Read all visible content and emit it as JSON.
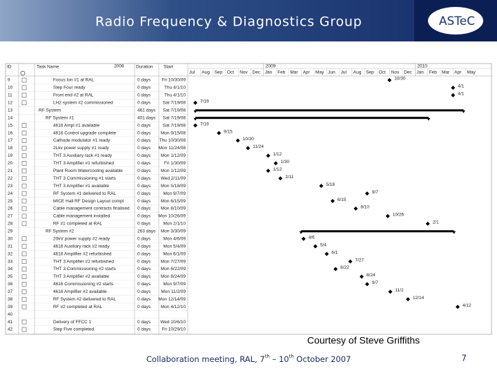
{
  "header": {
    "title": "Radio Frequency & Diagnostics Group",
    "logo": "ASTeC"
  },
  "gantt": {
    "columns": [
      "ID",
      "Task Name",
      "Duration",
      "Start"
    ],
    "years": [
      "2008",
      "2009",
      "2010"
    ],
    "months": [
      "Jul",
      "Aug",
      "Sep",
      "Oct",
      "Nov",
      "Dec",
      "Jan",
      "Feb",
      "Mar",
      "Apr",
      "May",
      "Jun",
      "Jul",
      "Aug",
      "Sep",
      "Oct",
      "Nov",
      "Dec",
      "Jan",
      "Feb",
      "Mar",
      "Apr",
      "May"
    ],
    "rows": [
      {
        "id": "9",
        "name": "Focus Ion #1 at RAL",
        "duration": "0 days",
        "start": "Fri 10/30/09",
        "label": "10/30"
      },
      {
        "id": "10",
        "name": "Step Four ready",
        "duration": "0 days",
        "start": "Thu 4/1/10",
        "label": "4/1"
      },
      {
        "id": "11",
        "name": "Front end #2 at RAL",
        "duration": "0 days",
        "start": "Thu 4/1/10",
        "label": "4/1"
      },
      {
        "id": "12",
        "name": "LH2 system #2 commissioned",
        "duration": "0 days",
        "start": "Sat 7/19/08",
        "label": "7/19"
      },
      {
        "id": "13",
        "name": "RF System",
        "duration": "461 days",
        "start": "Sat 7/19/08",
        "summary": true,
        "level": 1
      },
      {
        "id": "14",
        "name": "RF System #1",
        "duration": "401 days",
        "start": "Sat 7/19/08",
        "summary": true,
        "level": 2
      },
      {
        "id": "15",
        "name": "4616 Ampl #1 available",
        "duration": "0 days",
        "start": "Sat 7/19/08",
        "label": "7/19"
      },
      {
        "id": "16",
        "name": "4616 Control upgrade complete",
        "duration": "0 days",
        "start": "Mon 9/15/08",
        "label": "9/15"
      },
      {
        "id": "17",
        "name": "Cathode modulator #1 ready",
        "duration": "0 days",
        "start": "Thu 10/30/08",
        "label": "10/30"
      },
      {
        "id": "18",
        "name": "2Lkv power supply #1 ready",
        "duration": "0 days",
        "start": "Mon 11/24/08",
        "label": "11/24"
      },
      {
        "id": "19",
        "name": "THT 3 Auxiliary rack #1 ready",
        "duration": "0 days",
        "start": "Mon 1/12/09",
        "label": "1/12"
      },
      {
        "id": "20",
        "name": "THT 3 Amplifier #1 refurbished",
        "duration": "0 days",
        "start": "Fri 1/30/09",
        "label": "1/30"
      },
      {
        "id": "21",
        "name": "Plant Room Watercooling available",
        "duration": "0 days",
        "start": "Mon 1/12/09",
        "label": "1/12"
      },
      {
        "id": "22",
        "name": "THT 3 Commissioning #1 starts",
        "duration": "0 days",
        "start": "Wed 2/11/09",
        "label": "2/11"
      },
      {
        "id": "23",
        "name": "THT 3 Amplifier #1 available",
        "duration": "0 days",
        "start": "Mon 5/18/09",
        "label": "5/18"
      },
      {
        "id": "24",
        "name": "RF System #1 delivered to RAL",
        "duration": "0 days",
        "start": "Mon 9/7/09",
        "label": "9/7"
      },
      {
        "id": "25",
        "name": "MICE Hall RF Design Layout compl",
        "duration": "0 days",
        "start": "Mon 6/15/09",
        "label": "6/15"
      },
      {
        "id": "26",
        "name": "Cable management contracts finalised",
        "duration": "0 days",
        "start": "Mon 8/10/09",
        "label": "8/10"
      },
      {
        "id": "27",
        "name": "Cable management installed",
        "duration": "0 days",
        "start": "Mon 10/26/09",
        "label": "10/26"
      },
      {
        "id": "28",
        "name": "RF #1 completed at RAL",
        "duration": "0 days",
        "start": "Mon 2/1/10",
        "label": "2/1"
      },
      {
        "id": "29",
        "name": "RF System #2",
        "duration": "263 days",
        "start": "Mon 3/30/09",
        "summary": true,
        "level": 2
      },
      {
        "id": "30",
        "name": "20kV power supply #2 ready",
        "duration": "0 days",
        "start": "Mon 4/6/09",
        "label": "4/6"
      },
      {
        "id": "31",
        "name": "4616 Auxiliary rack #2 ready",
        "duration": "0 days",
        "start": "Mon 5/4/09",
        "label": "5/4"
      },
      {
        "id": "32",
        "name": "4616 Amplifier #2 refurbished",
        "duration": "0 days",
        "start": "Mon 6/1/09",
        "label": "6/1"
      },
      {
        "id": "33",
        "name": "THT 3 Amplifier #2 refurbished",
        "duration": "0 days",
        "start": "Mon 7/27/09",
        "label": "7/27"
      },
      {
        "id": "34",
        "name": "THT 3 Commissioning #2 starts",
        "duration": "0 days",
        "start": "Mon 6/22/09",
        "label": "6/22"
      },
      {
        "id": "35",
        "name": "THT 3 Amplifier #2 available",
        "duration": "0 days",
        "start": "Mon 8/24/09",
        "label": "8/24"
      },
      {
        "id": "36",
        "name": "4616 Commissioning #2 starts",
        "duration": "0 days",
        "start": "Mon 9/7/09",
        "label": "9/7"
      },
      {
        "id": "37",
        "name": "4616 Amplifier #2 available",
        "duration": "0 days",
        "start": "Mon 11/2/09",
        "label": "11/2"
      },
      {
        "id": "38",
        "name": "RF System #2 delivered to RAL",
        "duration": "0 days",
        "start": "Mon 12/14/09",
        "label": "12/14"
      },
      {
        "id": "39",
        "name": "RF #2 completed at RAL",
        "duration": "0 days",
        "start": "Mon 4/12/10",
        "label": "4/12"
      },
      {
        "id": "40"
      },
      {
        "id": "41",
        "name": "Delivery of FFCC 1",
        "duration": "0 days",
        "start": "Wed 10/6/10"
      },
      {
        "id": "42",
        "name": "Step Five completed",
        "duration": "0 days",
        "start": "Fri 10/29/10"
      }
    ]
  },
  "caption": "Courtesy of Steve Griffiths",
  "footer": {
    "parts": [
      "Collaboration meeting, RAL, 7",
      "th",
      " – 10",
      "th",
      " October 2007"
    ],
    "page": "7"
  }
}
